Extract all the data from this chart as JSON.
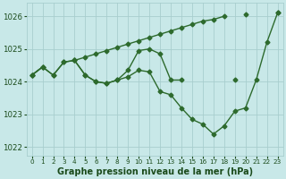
{
  "title": "Graphe pression niveau de la mer (hPa)",
  "hours": [
    0,
    1,
    2,
    3,
    4,
    5,
    6,
    7,
    8,
    9,
    10,
    11,
    12,
    13,
    14,
    15,
    16,
    17,
    18,
    19,
    20,
    21,
    22,
    23
  ],
  "series_top": [
    1024.2,
    1024.45,
    null,
    1024.6,
    1024.65,
    1024.75,
    1024.85,
    1024.9,
    1025.0,
    1025.1,
    1025.2,
    1025.35,
    1025.45,
    1025.55,
    1025.65,
    1025.75,
    1025.85,
    1025.9,
    1026.0,
    1026.05,
    null,
    null,
    null,
    1026.1
  ],
  "series_mid": [
    1024.2,
    1024.45,
    1024.2,
    1024.6,
    1024.65,
    1024.2,
    1024.0,
    1023.95,
    1024.0,
    1024.35,
    1024.95,
    1025.0,
    1024.85,
    1024.05,
    1024.05,
    null,
    null,
    null,
    null,
    1024.05,
    null,
    null,
    null,
    null
  ],
  "series_low": [
    1024.2,
    1024.45,
    1024.2,
    1024.6,
    1024.65,
    1024.2,
    1024.0,
    1023.95,
    1024.0,
    1024.15,
    1024.35,
    1024.3,
    1023.7,
    1023.6,
    1023.2,
    1022.85,
    1022.7,
    1022.4,
    1022.65,
    1023.1,
    1023.2,
    1024.05,
    1025.2,
    1026.1
  ],
  "line_color": "#2d6a2d",
  "marker": "D",
  "marker_size": 2.5,
  "bg_color": "#c8e8e8",
  "grid_color": "#a8cece",
  "text_color": "#1a4a1a",
  "ylim": [
    1021.75,
    1026.4
  ],
  "yticks": [
    1022,
    1023,
    1024,
    1025,
    1026
  ],
  "xlim": [
    -0.5,
    23.5
  ],
  "xticks": [
    0,
    1,
    2,
    3,
    4,
    5,
    6,
    7,
    8,
    9,
    10,
    11,
    12,
    13,
    14,
    15,
    16,
    17,
    18,
    19,
    20,
    21,
    22,
    23
  ],
  "linewidth": 1.0,
  "title_fontsize": 7.0
}
